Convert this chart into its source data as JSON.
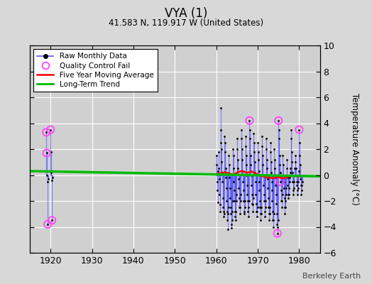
{
  "title": "VYA (1)",
  "subtitle": "41.583 N, 119.917 W (United States)",
  "ylabel": "Temperature Anomaly (°C)",
  "watermark": "Berkeley Earth",
  "xlim": [
    1915,
    1985
  ],
  "ylim": [
    -6,
    10
  ],
  "yticks": [
    -6,
    -4,
    -2,
    0,
    2,
    4,
    6,
    8,
    10
  ],
  "xticks": [
    1920,
    1930,
    1940,
    1950,
    1960,
    1970,
    1980
  ],
  "bg_color": "#d8d8d8",
  "plot_bg_color": "#d0d0d0",
  "grid_color": "#ffffff",
  "raw_color": "#5555ff",
  "raw_dot_color": "#000000",
  "qc_fail_color": "#ff44ff",
  "moving_avg_color": "#ff0000",
  "trend_color": "#00bb00",
  "raw_monthly_data": [
    [
      1919.0,
      3.3
    ],
    [
      1919.083,
      1.7
    ],
    [
      1919.167,
      0.0
    ],
    [
      1919.25,
      -0.5
    ],
    [
      1919.333,
      -3.8
    ],
    [
      1919.417,
      -0.3
    ],
    [
      1920.0,
      3.5
    ],
    [
      1920.083,
      1.8
    ],
    [
      1920.167,
      0.2
    ],
    [
      1920.25,
      -0.4
    ],
    [
      1920.333,
      -3.5
    ],
    [
      1920.417,
      -0.2
    ],
    [
      1960.0,
      1.5
    ],
    [
      1960.083,
      0.8
    ],
    [
      1960.167,
      -0.5
    ],
    [
      1960.25,
      -1.2
    ],
    [
      1960.333,
      -2.1
    ],
    [
      1960.417,
      0.3
    ],
    [
      1960.5,
      1.8
    ],
    [
      1960.583,
      0.5
    ],
    [
      1960.667,
      -0.3
    ],
    [
      1960.75,
      -1.5
    ],
    [
      1960.833,
      -2.3
    ],
    [
      1960.917,
      -2.8
    ],
    [
      1961.0,
      2.5
    ],
    [
      1961.083,
      5.2
    ],
    [
      1961.167,
      3.5
    ],
    [
      1961.25,
      2.0
    ],
    [
      1961.333,
      1.0
    ],
    [
      1961.417,
      0.2
    ],
    [
      1961.5,
      -0.5
    ],
    [
      1961.583,
      -1.8
    ],
    [
      1961.667,
      -2.5
    ],
    [
      1961.75,
      -3.2
    ],
    [
      1961.833,
      -2.8
    ],
    [
      1961.917,
      -3.0
    ],
    [
      1962.0,
      3.0
    ],
    [
      1962.083,
      2.5
    ],
    [
      1962.167,
      1.8
    ],
    [
      1962.25,
      0.5
    ],
    [
      1962.333,
      -0.2
    ],
    [
      1962.417,
      -1.0
    ],
    [
      1962.5,
      -2.0
    ],
    [
      1962.583,
      -2.8
    ],
    [
      1962.667,
      -3.5
    ],
    [
      1962.75,
      -4.2
    ],
    [
      1962.833,
      -3.0
    ],
    [
      1962.917,
      -2.5
    ],
    [
      1963.0,
      1.5
    ],
    [
      1963.083,
      0.8
    ],
    [
      1963.167,
      -0.2
    ],
    [
      1963.25,
      -1.0
    ],
    [
      1963.333,
      -1.8
    ],
    [
      1963.417,
      -2.5
    ],
    [
      1963.5,
      -3.0
    ],
    [
      1963.583,
      -3.8
    ],
    [
      1963.667,
      -4.1
    ],
    [
      1963.75,
      -3.5
    ],
    [
      1963.833,
      -2.8
    ],
    [
      1963.917,
      -2.0
    ],
    [
      1964.0,
      2.0
    ],
    [
      1964.083,
      1.5
    ],
    [
      1964.167,
      0.5
    ],
    [
      1964.25,
      -0.5
    ],
    [
      1964.333,
      -1.2
    ],
    [
      1964.417,
      -2.0
    ],
    [
      1964.5,
      -2.8
    ],
    [
      1964.583,
      -3.2
    ],
    [
      1964.667,
      -3.5
    ],
    [
      1964.75,
      -2.8
    ],
    [
      1964.833,
      -2.0
    ],
    [
      1964.917,
      -1.5
    ],
    [
      1965.0,
      2.8
    ],
    [
      1965.083,
      2.0
    ],
    [
      1965.167,
      1.2
    ],
    [
      1965.25,
      0.5
    ],
    [
      1965.333,
      -0.3
    ],
    [
      1965.417,
      -1.0
    ],
    [
      1965.5,
      -1.8
    ],
    [
      1965.583,
      -2.5
    ],
    [
      1965.667,
      -3.0
    ],
    [
      1965.75,
      -2.5
    ],
    [
      1965.833,
      -2.0
    ],
    [
      1965.917,
      -1.5
    ],
    [
      1966.0,
      3.5
    ],
    [
      1966.083,
      2.8
    ],
    [
      1966.167,
      2.0
    ],
    [
      1966.25,
      1.2
    ],
    [
      1966.333,
      0.3
    ],
    [
      1966.417,
      -0.5
    ],
    [
      1966.5,
      -1.2
    ],
    [
      1966.583,
      -2.0
    ],
    [
      1966.667,
      -2.8
    ],
    [
      1966.75,
      -3.0
    ],
    [
      1966.833,
      -2.5
    ],
    [
      1966.917,
      -2.0
    ],
    [
      1967.0,
      3.0
    ],
    [
      1967.083,
      2.2
    ],
    [
      1967.167,
      1.5
    ],
    [
      1967.25,
      0.8
    ],
    [
      1967.333,
      0.0
    ],
    [
      1967.417,
      -0.8
    ],
    [
      1967.5,
      -1.5
    ],
    [
      1967.583,
      -2.0
    ],
    [
      1967.667,
      -2.8
    ],
    [
      1967.75,
      -3.2
    ],
    [
      1967.833,
      -2.5
    ],
    [
      1967.917,
      -2.0
    ],
    [
      1968.0,
      4.2
    ],
    [
      1968.083,
      3.5
    ],
    [
      1968.167,
      2.8
    ],
    [
      1968.25,
      1.5
    ],
    [
      1968.333,
      0.8
    ],
    [
      1968.417,
      0.0
    ],
    [
      1968.5,
      -0.8
    ],
    [
      1968.583,
      -1.5
    ],
    [
      1968.667,
      -2.2
    ],
    [
      1968.75,
      -2.8
    ],
    [
      1968.833,
      -2.3
    ],
    [
      1968.917,
      -1.8
    ],
    [
      1969.0,
      3.2
    ],
    [
      1969.083,
      2.5
    ],
    [
      1969.167,
      1.8
    ],
    [
      1969.25,
      1.0
    ],
    [
      1969.333,
      0.2
    ],
    [
      1969.417,
      -0.5
    ],
    [
      1969.5,
      -1.5
    ],
    [
      1969.583,
      -2.2
    ],
    [
      1969.667,
      -2.8
    ],
    [
      1969.75,
      -3.2
    ],
    [
      1969.833,
      -2.8
    ],
    [
      1969.917,
      -2.5
    ],
    [
      1970.0,
      2.5
    ],
    [
      1970.083,
      1.8
    ],
    [
      1970.167,
      1.2
    ],
    [
      1970.25,
      0.3
    ],
    [
      1970.333,
      -0.5
    ],
    [
      1970.417,
      -1.2
    ],
    [
      1970.5,
      -2.0
    ],
    [
      1970.583,
      -2.5
    ],
    [
      1970.667,
      -3.0
    ],
    [
      1970.75,
      -3.5
    ],
    [
      1970.833,
      -3.0
    ],
    [
      1970.917,
      -2.5
    ],
    [
      1971.0,
      3.0
    ],
    [
      1971.083,
      2.2
    ],
    [
      1971.167,
      1.5
    ],
    [
      1971.25,
      0.8
    ],
    [
      1971.333,
      0.0
    ],
    [
      1971.417,
      -0.8
    ],
    [
      1971.5,
      -1.5
    ],
    [
      1971.583,
      -2.0
    ],
    [
      1971.667,
      -2.8
    ],
    [
      1971.75,
      -3.2
    ],
    [
      1971.833,
      -2.5
    ],
    [
      1971.917,
      -2.0
    ],
    [
      1972.0,
      2.8
    ],
    [
      1972.083,
      2.0
    ],
    [
      1972.167,
      1.2
    ],
    [
      1972.25,
      0.5
    ],
    [
      1972.333,
      -0.3
    ],
    [
      1972.417,
      -1.0
    ],
    [
      1972.5,
      -1.8
    ],
    [
      1972.583,
      -2.5
    ],
    [
      1972.667,
      -3.0
    ],
    [
      1972.75,
      -3.5
    ],
    [
      1972.833,
      -3.0
    ],
    [
      1972.917,
      -2.5
    ],
    [
      1973.0,
      2.5
    ],
    [
      1973.083,
      1.8
    ],
    [
      1973.167,
      1.0
    ],
    [
      1973.25,
      0.2
    ],
    [
      1973.333,
      -0.5
    ],
    [
      1973.417,
      -1.2
    ],
    [
      1973.5,
      -2.0
    ],
    [
      1973.583,
      -2.8
    ],
    [
      1973.667,
      -3.5
    ],
    [
      1973.75,
      -4.0
    ],
    [
      1973.833,
      -3.5
    ],
    [
      1973.917,
      -3.0
    ],
    [
      1974.0,
      2.0
    ],
    [
      1974.083,
      1.2
    ],
    [
      1974.167,
      0.5
    ],
    [
      1974.25,
      -0.2
    ],
    [
      1974.333,
      -0.8
    ],
    [
      1974.417,
      -1.5
    ],
    [
      1974.5,
      -2.2
    ],
    [
      1974.583,
      -3.0
    ],
    [
      1974.667,
      -3.8
    ],
    [
      1974.75,
      -4.5
    ],
    [
      1974.833,
      -4.0
    ],
    [
      1974.917,
      -3.5
    ],
    [
      1975.0,
      4.2
    ],
    [
      1975.083,
      3.5
    ],
    [
      1975.167,
      2.8
    ],
    [
      1975.25,
      1.5
    ],
    [
      1975.333,
      0.8
    ],
    [
      1975.417,
      0.2
    ],
    [
      1975.5,
      -0.5
    ],
    [
      1975.583,
      -1.2
    ],
    [
      1975.667,
      -2.0
    ],
    [
      1975.75,
      -2.5
    ],
    [
      1975.833,
      -2.0
    ],
    [
      1975.917,
      -1.5
    ],
    [
      1976.0,
      1.5
    ],
    [
      1976.083,
      0.8
    ],
    [
      1976.167,
      0.0
    ],
    [
      1976.25,
      -0.5
    ],
    [
      1976.333,
      -1.0
    ],
    [
      1976.417,
      -1.8
    ],
    [
      1976.5,
      -2.5
    ],
    [
      1976.583,
      -3.0
    ],
    [
      1976.667,
      -2.5
    ],
    [
      1976.75,
      -2.0
    ],
    [
      1976.833,
      -1.5
    ],
    [
      1976.917,
      -1.0
    ],
    [
      1977.0,
      1.2
    ],
    [
      1977.083,
      0.5
    ],
    [
      1977.167,
      -0.2
    ],
    [
      1977.25,
      -0.8
    ],
    [
      1977.333,
      -1.5
    ],
    [
      1977.417,
      -1.8
    ],
    [
      1977.5,
      -1.5
    ],
    [
      1977.583,
      -1.0
    ],
    [
      1977.667,
      -0.5
    ],
    [
      1977.75,
      -0.2
    ],
    [
      1977.833,
      0.2
    ],
    [
      1977.917,
      0.5
    ],
    [
      1978.0,
      3.5
    ],
    [
      1978.083,
      2.8
    ],
    [
      1978.167,
      1.8
    ],
    [
      1978.25,
      1.0
    ],
    [
      1978.333,
      0.2
    ],
    [
      1978.417,
      -0.5
    ],
    [
      1978.5,
      -1.2
    ],
    [
      1978.583,
      -1.5
    ],
    [
      1978.667,
      -1.0
    ],
    [
      1978.75,
      -0.5
    ],
    [
      1978.833,
      0.0
    ],
    [
      1978.917,
      0.5
    ],
    [
      1979.0,
      1.5
    ],
    [
      1979.083,
      1.0
    ],
    [
      1979.167,
      0.5
    ],
    [
      1979.25,
      0.0
    ],
    [
      1979.333,
      -0.5
    ],
    [
      1979.417,
      -0.8
    ],
    [
      1979.5,
      -1.2
    ],
    [
      1979.583,
      -1.5
    ],
    [
      1979.667,
      -1.0
    ],
    [
      1979.75,
      -0.5
    ],
    [
      1979.833,
      0.0
    ],
    [
      1979.917,
      0.3
    ],
    [
      1980.0,
      3.5
    ],
    [
      1980.083,
      2.5
    ],
    [
      1980.167,
      1.5
    ],
    [
      1980.25,
      0.8
    ],
    [
      1980.333,
      -0.3
    ],
    [
      1980.417,
      -0.8
    ],
    [
      1980.5,
      -1.5
    ],
    [
      1980.583,
      -1.2
    ],
    [
      1980.667,
      -0.8
    ],
    [
      1980.75,
      -0.5
    ]
  ],
  "qc_fail_points": [
    [
      1919.0,
      3.3
    ],
    [
      1919.083,
      1.7
    ],
    [
      1919.333,
      -3.8
    ],
    [
      1920.0,
      3.5
    ],
    [
      1920.333,
      -3.5
    ],
    [
      1968.0,
      4.2
    ],
    [
      1974.75,
      -4.5
    ],
    [
      1975.5,
      -0.5
    ],
    [
      1975.0,
      4.2
    ],
    [
      1980.0,
      3.5
    ]
  ],
  "moving_avg": [
    [
      1960.5,
      0.15
    ],
    [
      1961.0,
      0.12
    ],
    [
      1961.5,
      0.18
    ],
    [
      1962.0,
      0.22
    ],
    [
      1962.5,
      0.18
    ],
    [
      1963.0,
      0.15
    ],
    [
      1963.5,
      0.08
    ],
    [
      1964.0,
      0.05
    ],
    [
      1964.5,
      0.1
    ],
    [
      1965.0,
      0.18
    ],
    [
      1965.5,
      0.25
    ],
    [
      1966.0,
      0.3
    ],
    [
      1966.5,
      0.28
    ],
    [
      1967.0,
      0.22
    ],
    [
      1967.5,
      0.18
    ],
    [
      1968.0,
      0.22
    ],
    [
      1968.5,
      0.28
    ],
    [
      1969.0,
      0.2
    ],
    [
      1969.5,
      0.12
    ],
    [
      1970.0,
      0.05
    ],
    [
      1970.5,
      -0.05
    ],
    [
      1971.0,
      -0.08
    ],
    [
      1971.5,
      -0.12
    ],
    [
      1972.0,
      -0.18
    ],
    [
      1972.5,
      -0.22
    ],
    [
      1973.0,
      -0.2
    ],
    [
      1973.5,
      -0.25
    ],
    [
      1974.0,
      -0.22
    ],
    [
      1974.5,
      -0.18
    ],
    [
      1975.0,
      -0.15
    ],
    [
      1975.5,
      -0.2
    ],
    [
      1976.0,
      -0.25
    ],
    [
      1976.5,
      -0.22
    ],
    [
      1977.0,
      -0.18
    ],
    [
      1977.5,
      -0.12
    ],
    [
      1978.0,
      -0.08
    ],
    [
      1978.5,
      -0.05
    ],
    [
      1979.0,
      -0.08
    ],
    [
      1979.5,
      -0.1
    ],
    [
      1980.0,
      -0.12
    ]
  ],
  "trend_x": [
    1915,
    1985
  ],
  "trend_y": [
    0.3,
    -0.1
  ]
}
